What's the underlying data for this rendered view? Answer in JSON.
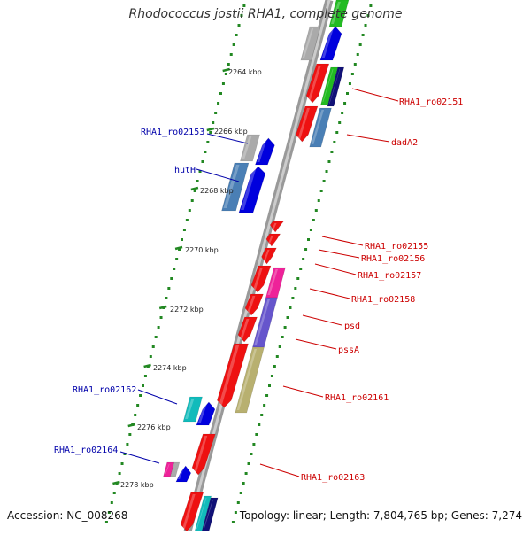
{
  "title": "Rhodococcus jostii RHA1, complete genome",
  "accession": "Accession: NC_008268",
  "topology": "Topology: linear; Length: 7,804,765 bp; Genes: 7,274",
  "colors": {
    "red": "#ee1111",
    "blue": "#0000dd",
    "steel": "#4a7fb5",
    "gray": "#aaaaaa",
    "magenta": "#ee2299",
    "purple": "#6655cc",
    "olive": "#b8b070",
    "teal": "#11bbbb",
    "green": "#22bb22",
    "navy": "#111177",
    "tick": "#228822",
    "backbone": "#999999",
    "label_right": "#cc0000",
    "label_left": "#0000aa"
  },
  "scale_labels": [
    "2264 kbp",
    "2266 kbp",
    "2268 kbp",
    "2270 kbp",
    "2272 kbp",
    "2274 kbp",
    "2276 kbp",
    "2278 kbp"
  ],
  "right_labels": [
    "RHA1_ro02151",
    "dadA2",
    "RHA1_ro02155",
    "RHA1_ro02156",
    "RHA1_ro02157",
    "RHA1_ro02158",
    "psd",
    "pssA",
    "RHA1_ro02161",
    "RHA1_ro02163"
  ],
  "left_labels": [
    "RHA1_ro02153",
    "hutH",
    "RHA1_ro02162",
    "RHA1_ro02164"
  ]
}
